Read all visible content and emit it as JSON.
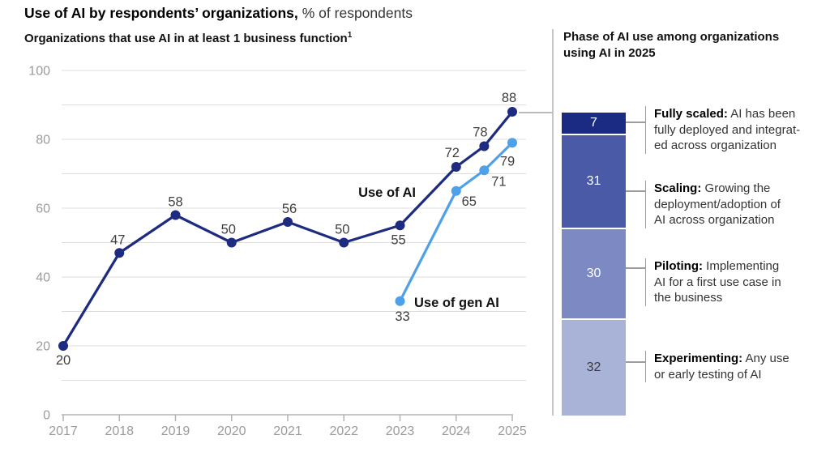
{
  "header": {
    "title_bold": "Use of AI by respondents’ organizations,",
    "title_regular": "% of respondents"
  },
  "left_chart": {
    "subtitle": "Organizations that use AI in at least 1 business function",
    "footnote_marker": "1"
  },
  "right_panel": {
    "title": "Phase of AI use among organizations using AI in 2025"
  },
  "chart_data": [
    {
      "type": "line",
      "title": "Organizations that use AI in at least 1 business function",
      "ylabel": "% of respondents",
      "xlabel": "",
      "x_ticks": [
        2017,
        2018,
        2019,
        2020,
        2021,
        2022,
        2023,
        2024,
        2025
      ],
      "ylim": [
        0,
        100
      ],
      "grid": true,
      "grid_step": 10,
      "y_tick_labels": [
        0,
        20,
        40,
        60,
        80,
        100
      ],
      "series": [
        {
          "name": "Use of AI",
          "color": "#1d2b80",
          "points": [
            {
              "x": 2017,
              "y": 20
            },
            {
              "x": 2018,
              "y": 47
            },
            {
              "x": 2019,
              "y": 58
            },
            {
              "x": 2020,
              "y": 50
            },
            {
              "x": 2021,
              "y": 56
            },
            {
              "x": 2022,
              "y": 50
            },
            {
              "x": 2023,
              "y": 55
            },
            {
              "x": 2024,
              "y": 72
            },
            {
              "x": 2024.5,
              "y": 78
            },
            {
              "x": 2025,
              "y": 88
            }
          ]
        },
        {
          "name": "Use of gen AI",
          "color": "#4ea1e8",
          "points": [
            {
              "x": 2023,
              "y": 33
            },
            {
              "x": 2024,
              "y": 65
            },
            {
              "x": 2024.5,
              "y": 71
            },
            {
              "x": 2025,
              "y": 79
            }
          ]
        }
      ]
    },
    {
      "type": "bar",
      "stacked": true,
      "title": "Phase of AI use among organizations using AI in 2025",
      "total": 100,
      "segments": [
        {
          "term": "Fully scaled:",
          "value": 7,
          "color": "#1b2a82",
          "text_color": "#ffffff",
          "desc": "AI has been\nfully deployed and integrat-\ned across organization"
        },
        {
          "term": "Scaling:",
          "value": 31,
          "color": "#4a5aa6",
          "text_color": "#ffffff",
          "desc": "Growing the\ndeployment/adoption of\nAI across organization"
        },
        {
          "term": "Piloting:",
          "value": 30,
          "color": "#7c89c3",
          "text_color": "#ffffff",
          "desc": "Implementing\nAI for a first use case in\nthe business"
        },
        {
          "term": "Experimenting:",
          "value": 32,
          "color": "#a9b3d8",
          "text_color": "#3a3a3a",
          "desc": "Any use\nor early testing of AI"
        }
      ]
    }
  ]
}
